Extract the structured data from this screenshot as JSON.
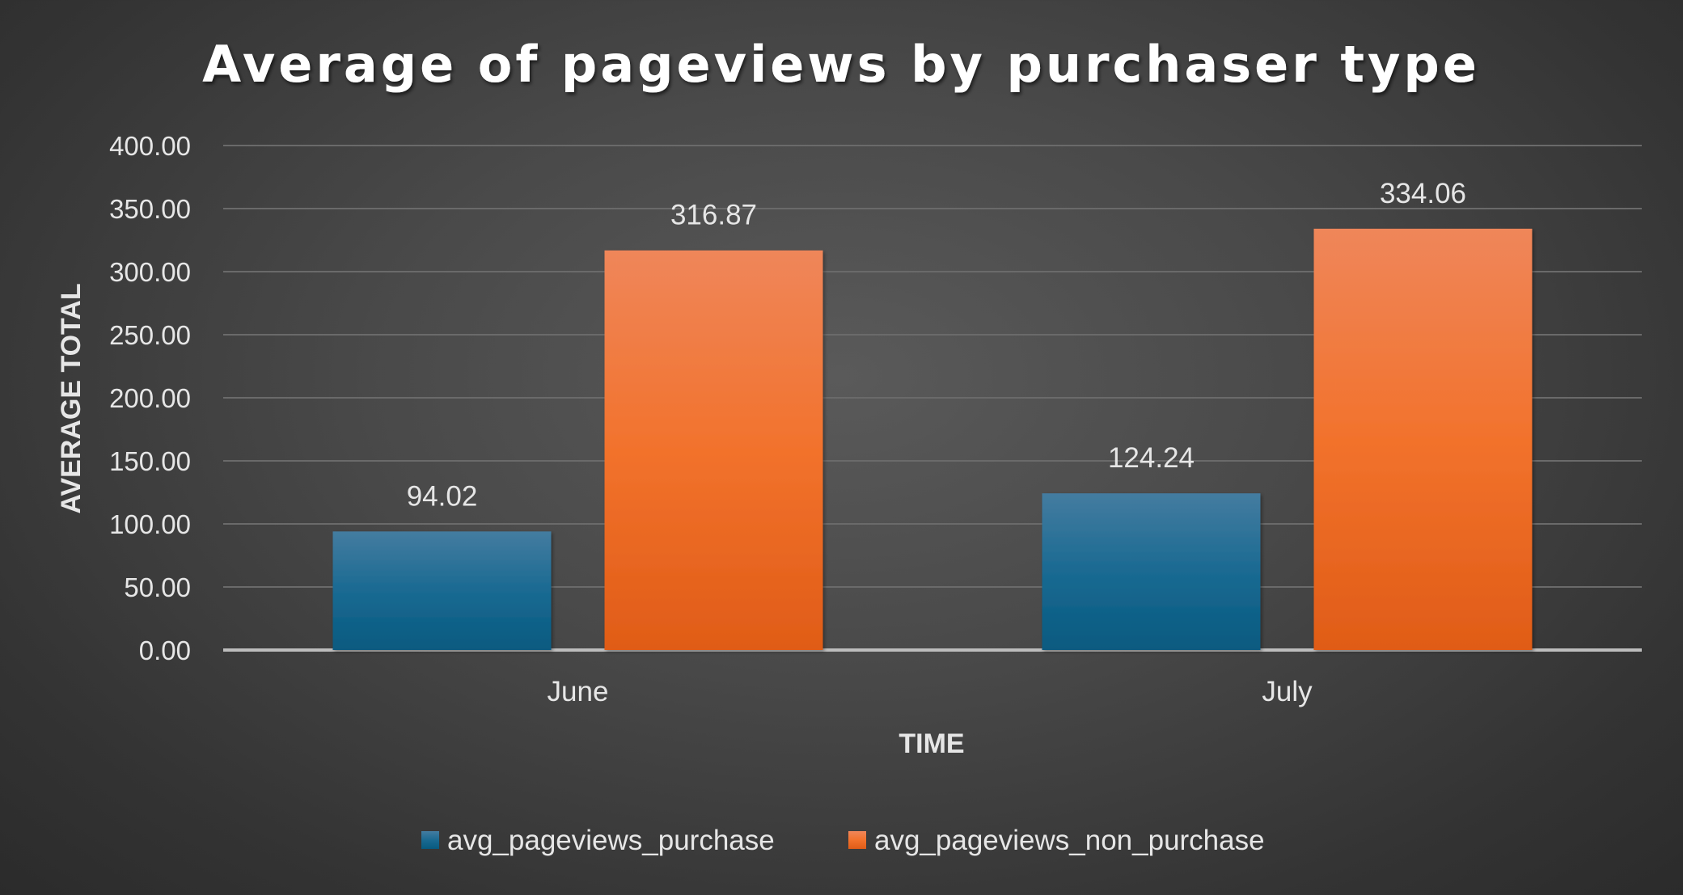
{
  "colors": {
    "purchase": "#1d6a90",
    "non_purchase": "#f07030",
    "text": "#e6e6e6",
    "title": "#ffffff",
    "gridline": "#6a6a6a",
    "axis_line": "#bdbdbd"
  },
  "chart_data": {
    "type": "bar",
    "title": "Average of pageviews by purchaser type",
    "xlabel": "TIME",
    "ylabel": "AVERAGE TOTAL",
    "categories": [
      "June",
      "July"
    ],
    "series": [
      {
        "name": "avg_pageviews_purchase",
        "values": [
          94.02,
          124.24
        ],
        "color": "#1d6a90"
      },
      {
        "name": "avg_pageviews_non_purchase",
        "values": [
          316.87,
          334.06
        ],
        "color": "#f07030"
      }
    ],
    "ylim": [
      0,
      400
    ],
    "yticks": [
      "0.00",
      "50.00",
      "100.00",
      "150.00",
      "200.00",
      "250.00",
      "300.00",
      "350.00",
      "400.00"
    ],
    "data_labels": [
      [
        "94.02",
        "124.24"
      ],
      [
        "316.87",
        "334.06"
      ]
    ],
    "grid": true,
    "legend_position": "bottom"
  }
}
